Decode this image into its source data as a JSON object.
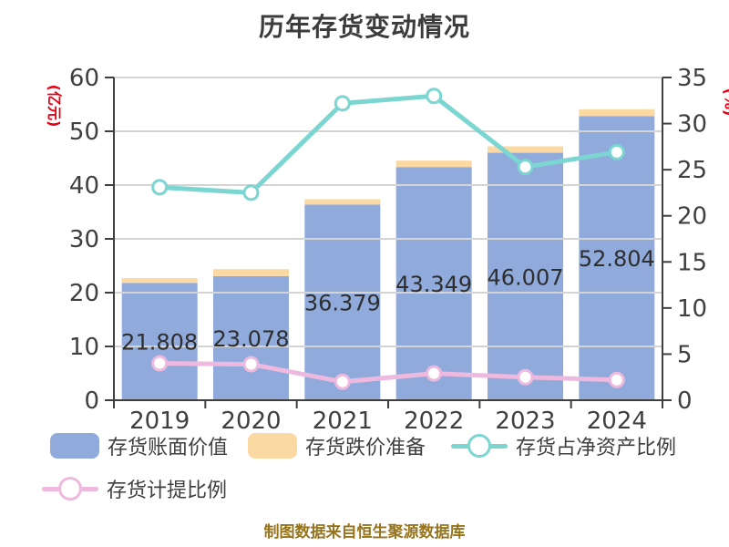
{
  "page": {
    "background": "#FFFFFF"
  },
  "chart_data": {
    "type": "combo",
    "title": "历年存货变动情况",
    "categories": [
      "2019",
      "2020",
      "2021",
      "2022",
      "2023",
      "2024"
    ],
    "series": [
      {
        "name": "存货账面价值",
        "type": "bar",
        "stack": "inventory",
        "axis": "left",
        "color": "#8FAADB",
        "values": [
          21.808,
          23.078,
          36.379,
          43.349,
          46.007,
          52.804
        ],
        "labels_visible": true
      },
      {
        "name": "存货跌价准备",
        "type": "bar",
        "stack": "inventory",
        "axis": "left",
        "color": "#FBD9A2",
        "values": [
          0.9,
          1.3,
          1.0,
          1.2,
          1.2,
          1.3
        ],
        "estimated": true
      },
      {
        "name": "存货占净资产比例",
        "type": "line",
        "axis": "right",
        "color": "#7BD6D2",
        "marker": "white-circle",
        "values": [
          23.1,
          22.5,
          32.2,
          33.0,
          25.3,
          26.9
        ],
        "estimated": true
      },
      {
        "name": "存货计提比例",
        "type": "line",
        "axis": "right",
        "color": "#EEB9DE",
        "marker": "white-circle",
        "values": [
          4.0,
          3.9,
          2.0,
          2.9,
          2.5,
          2.2
        ],
        "estimated": true
      }
    ],
    "left_axis": {
      "label": "(亿元)",
      "label_color": "#E60012",
      "range": [
        0,
        60
      ],
      "ticks": [
        0,
        10,
        20,
        30,
        40,
        50,
        60
      ]
    },
    "right_axis": {
      "label": "(%)",
      "label_color": "#E60012",
      "range": [
        0,
        35
      ],
      "ticks": [
        0,
        5,
        10,
        15,
        20,
        25,
        30,
        35
      ]
    },
    "grid": true,
    "legend_position": "bottom-left"
  },
  "footer": {
    "text": "制图数据来自恒生聚源数据库",
    "color": "#97741C"
  }
}
